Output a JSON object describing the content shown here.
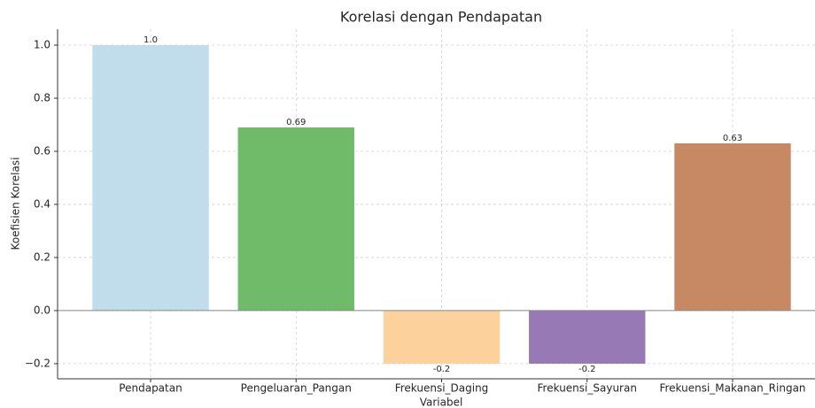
{
  "chart_data": {
    "type": "bar",
    "title": "Korelasi dengan Pendapatan",
    "x_label": "Variabel",
    "y_label": "Koefisien Korelasi",
    "categories": [
      "Pendapatan",
      "Pengeluaran_Pangan",
      "Frekuensi_Daging",
      "Frekuensi_Sayuran",
      "Frekuensi_Makanan_Ringan"
    ],
    "values": [
      1.0,
      0.69,
      -0.2,
      -0.2,
      0.63
    ],
    "value_labels": [
      "1.0",
      "0.69",
      "-0.2",
      "-0.2",
      "0.63"
    ],
    "colors": [
      "#c1dcea",
      "#70bb6a",
      "#fcd19b",
      "#9779b6",
      "#c68963"
    ],
    "ylim": [
      -0.257,
      1.06
    ],
    "yticks": [
      {
        "value": -0.2,
        "label": "−0.2"
      },
      {
        "value": 0,
        "label": "0.0"
      },
      0.2,
      0.4,
      0.6,
      0.8,
      {
        "value": 1,
        "label": "1.0"
      }
    ],
    "grid": true
  }
}
